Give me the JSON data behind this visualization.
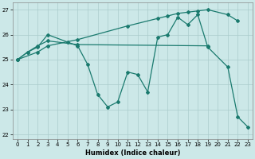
{
  "xlabel": "Humidex (Indice chaleur)",
  "bg_color": "#cce8e8",
  "line_color": "#1a7a6e",
  "grid_color": "#aacccc",
  "xlim": [
    -0.5,
    23.5
  ],
  "ylim": [
    21.8,
    27.3
  ],
  "yticks": [
    22,
    23,
    24,
    25,
    26,
    27
  ],
  "xticks": [
    0,
    1,
    2,
    3,
    4,
    5,
    6,
    7,
    8,
    9,
    10,
    11,
    12,
    13,
    14,
    15,
    16,
    17,
    18,
    19,
    20,
    21,
    22,
    23
  ],
  "line_diag_x": [
    0,
    2,
    3,
    6,
    11,
    14,
    15,
    16,
    17,
    18,
    19,
    21,
    22
  ],
  "line_diag_y": [
    25.0,
    25.3,
    25.55,
    25.8,
    26.35,
    26.65,
    26.75,
    26.85,
    26.9,
    26.95,
    27.0,
    26.8,
    26.55
  ],
  "line_flat_x": [
    0,
    1,
    2,
    3,
    6,
    19
  ],
  "line_flat_y": [
    25.0,
    25.3,
    25.55,
    25.75,
    25.6,
    25.55
  ],
  "line_jagged_x": [
    0,
    1,
    2,
    3,
    5,
    6,
    7,
    8,
    9,
    10,
    11,
    12,
    13,
    14,
    15,
    16,
    17,
    18,
    19,
    21,
    22,
    23
  ],
  "line_jagged_y": [
    25.0,
    25.3,
    25.5,
    26.0,
    25.7,
    25.55,
    24.8,
    23.6,
    23.1,
    23.3,
    24.5,
    24.4,
    23.7,
    25.9,
    26.0,
    26.7,
    26.4,
    26.8,
    25.5,
    24.7,
    22.7,
    22.3
  ]
}
